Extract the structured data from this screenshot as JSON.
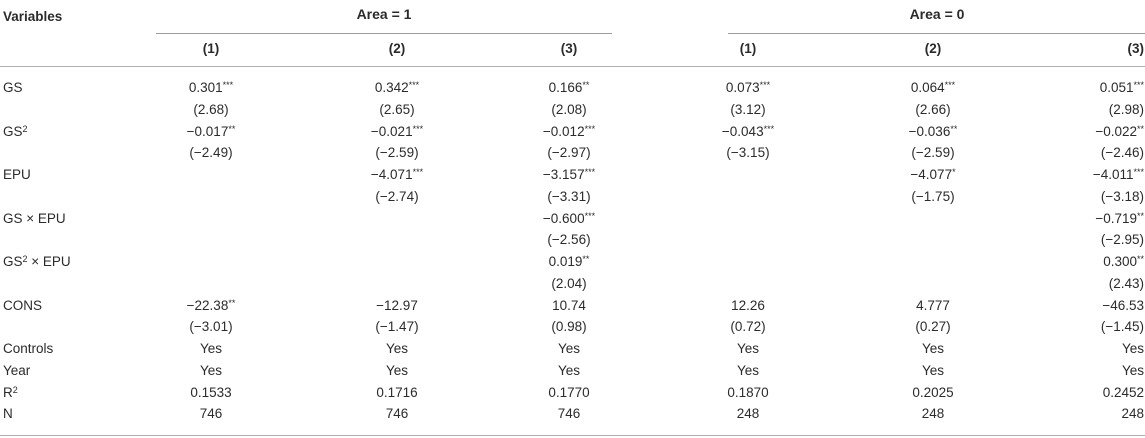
{
  "header": {
    "variables_label": "Variables",
    "groups": [
      "Area = 1",
      "Area = 0"
    ],
    "columns": [
      "(1)",
      "(2)",
      "(3)",
      "(1)",
      "(2)",
      "(3)"
    ]
  },
  "rows": [
    {
      "label": "GS",
      "sup": "",
      "suffix": "",
      "cells": [
        "0.301",
        "0.342",
        "0.166",
        "0.073",
        "0.064",
        "0.051"
      ],
      "stars": [
        "***",
        "***",
        "**",
        "***",
        "***",
        "***"
      ]
    },
    {
      "label": "",
      "sup": "",
      "suffix": "",
      "cells": [
        "(2.68)",
        "(2.65)",
        "(2.08)",
        "(3.12)",
        "(2.66)",
        "(2.98)"
      ],
      "stars": [
        "",
        "",
        "",
        "",
        "",
        ""
      ]
    },
    {
      "label": "GS",
      "sup": "2",
      "suffix": "",
      "cells": [
        "−0.017",
        "−0.021",
        "−0.012",
        "−0.043",
        "−0.036",
        "−0.022"
      ],
      "stars": [
        "**",
        "***",
        "***",
        "***",
        "**",
        "**"
      ]
    },
    {
      "label": "",
      "sup": "",
      "suffix": "",
      "cells": [
        "(−2.49)",
        "(−2.59)",
        "(−2.97)",
        "(−3.15)",
        "(−2.59)",
        "(−2.46)"
      ],
      "stars": [
        "",
        "",
        "",
        "",
        "",
        ""
      ]
    },
    {
      "label": "EPU",
      "sup": "",
      "suffix": "",
      "cells": [
        "",
        "−4.071",
        "−3.157",
        "",
        "−4.077",
        "−4.011"
      ],
      "stars": [
        "",
        "***",
        "***",
        "",
        "*",
        "***"
      ]
    },
    {
      "label": "",
      "sup": "",
      "suffix": "",
      "cells": [
        "",
        "(−2.74)",
        "(−3.31)",
        "",
        "(−1.75)",
        "(−3.18)"
      ],
      "stars": [
        "",
        "",
        "",
        "",
        "",
        ""
      ]
    },
    {
      "label": "GS × EPU",
      "sup": "",
      "suffix": "",
      "cells": [
        "",
        "",
        "−0.600",
        "",
        "",
        "−0.719"
      ],
      "stars": [
        "",
        "",
        "***",
        "",
        "",
        "**"
      ]
    },
    {
      "label": "",
      "sup": "",
      "suffix": "",
      "cells": [
        "",
        "",
        "(−2.56)",
        "",
        "",
        "(−2.95)"
      ],
      "stars": [
        "",
        "",
        "",
        "",
        "",
        ""
      ]
    },
    {
      "label": "GS",
      "sup": "2",
      "suffix": " × EPU",
      "cells": [
        "",
        "",
        "0.019",
        "",
        "",
        "0.300"
      ],
      "stars": [
        "",
        "",
        "**",
        "",
        "",
        "**"
      ]
    },
    {
      "label": "",
      "sup": "",
      "suffix": "",
      "cells": [
        "",
        "",
        "(2.04)",
        "",
        "",
        "(2.43)"
      ],
      "stars": [
        "",
        "",
        "",
        "",
        "",
        ""
      ]
    },
    {
      "label": "CONS",
      "sup": "",
      "suffix": "",
      "cells": [
        "−22.38",
        "−12.97",
        "10.74",
        "12.26",
        "4.777",
        "−46.53"
      ],
      "stars": [
        "**",
        "",
        "",
        "",
        "",
        ""
      ]
    },
    {
      "label": "",
      "sup": "",
      "suffix": "",
      "cells": [
        "(−3.01)",
        "(−1.47)",
        "(0.98)",
        "(0.72)",
        "(0.27)",
        "(−1.45)"
      ],
      "stars": [
        "",
        "",
        "",
        "",
        "",
        ""
      ]
    },
    {
      "label": "Controls",
      "sup": "",
      "suffix": "",
      "cells": [
        "Yes",
        "Yes",
        "Yes",
        "Yes",
        "Yes",
        "Yes"
      ],
      "stars": [
        "",
        "",
        "",
        "",
        "",
        ""
      ]
    },
    {
      "label": "Year",
      "sup": "",
      "suffix": "",
      "cells": [
        "Yes",
        "Yes",
        "Yes",
        "Yes",
        "Yes",
        "Yes"
      ],
      "stars": [
        "",
        "",
        "",
        "",
        "",
        ""
      ]
    },
    {
      "label": "R",
      "sup": "2",
      "suffix": "",
      "cells": [
        "0.1533",
        "0.1716",
        "0.1770",
        "0.1870",
        "0.2025",
        "0.2452"
      ],
      "stars": [
        "",
        "",
        "",
        "",
        "",
        ""
      ]
    },
    {
      "label": "N",
      "sup": "",
      "suffix": "",
      "cells": [
        "746",
        "746",
        "746",
        "248",
        "248",
        "248"
      ],
      "stars": [
        "",
        "",
        "",
        "",
        "",
        ""
      ]
    }
  ]
}
